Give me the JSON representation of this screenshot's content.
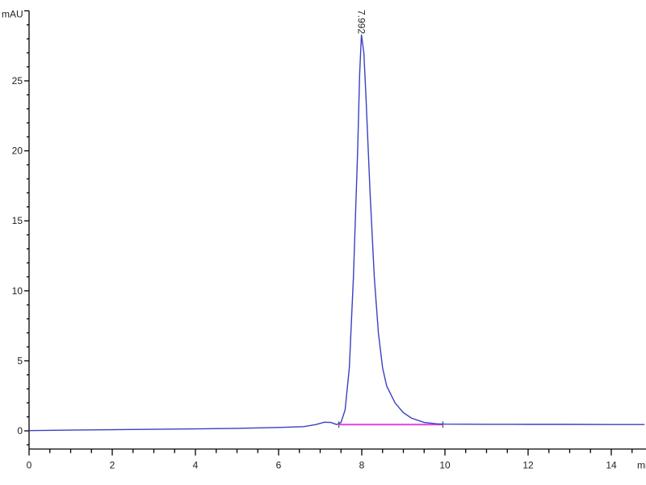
{
  "chart_data": {
    "type": "line",
    "title": "",
    "xlabel": "min",
    "ylabel": "mAU",
    "xlim": [
      0,
      14.8
    ],
    "ylim": [
      -1.3,
      30
    ],
    "x_ticks": [
      0,
      2,
      4,
      6,
      8,
      10,
      12,
      14
    ],
    "x_tick_labels": [
      "0",
      "2",
      "4",
      "6",
      "8",
      "10",
      "12",
      "14"
    ],
    "y_ticks": [
      0,
      5,
      10,
      15,
      20,
      25
    ],
    "y_tick_labels": [
      "0",
      "5",
      "10",
      "15",
      "20",
      "25"
    ],
    "grid": false,
    "series": [
      {
        "color": "#3a3fc4",
        "x": [
          0,
          1,
          2,
          3,
          4,
          5,
          6,
          6.6,
          6.9,
          7.1,
          7.25,
          7.4,
          7.5,
          7.6,
          7.7,
          7.8,
          7.9,
          7.95,
          7.992,
          8.05,
          8.1,
          8.2,
          8.3,
          8.4,
          8.5,
          8.6,
          8.8,
          9.0,
          9.2,
          9.5,
          9.8,
          10,
          11,
          12,
          13,
          14,
          14.8
        ],
        "y": [
          0.02,
          0.05,
          0.08,
          0.11,
          0.14,
          0.18,
          0.24,
          0.3,
          0.45,
          0.62,
          0.6,
          0.45,
          0.6,
          1.5,
          4.5,
          11,
          20,
          25.5,
          28.3,
          27,
          24,
          17,
          11,
          7,
          4.5,
          3.2,
          2,
          1.3,
          0.9,
          0.6,
          0.5,
          0.48,
          0.47,
          0.46,
          0.46,
          0.45,
          0.45
        ]
      }
    ],
    "integration_baseline": {
      "color": "#e040e0",
      "x": [
        7.45,
        9.95
      ],
      "y": [
        0.45,
        0.45
      ]
    },
    "peak_annotations": [
      {
        "x": 7.992,
        "y": 28.3,
        "label": "7.992"
      }
    ]
  }
}
